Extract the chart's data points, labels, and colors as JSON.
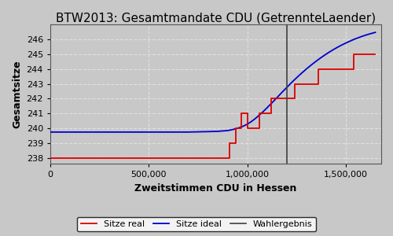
{
  "title": "BTW2013: Gesamtmandate CDU (GetrennteLaender)",
  "xlabel": "Zweitstimmen CDU in Hessen",
  "ylabel": "Gesamtsitze",
  "background_color": "#c8c8c8",
  "plot_background_color": "#c8c8c8",
  "wahlergebnis": 1200000,
  "xlim": [
    0,
    1680000
  ],
  "ylim": [
    237.6,
    247.0
  ],
  "yticks": [
    238,
    239,
    240,
    241,
    242,
    243,
    244,
    245,
    246
  ],
  "xticks": [
    0,
    500000,
    1000000,
    1500000
  ],
  "xticklabels": [
    "0",
    "500,000",
    "1,000,000",
    "1,500,000"
  ],
  "ideal_x": [
    0,
    50000,
    100000,
    200000,
    300000,
    400000,
    500000,
    600000,
    700000,
    800000,
    850000,
    900000,
    920000,
    940000,
    960000,
    980000,
    1000000,
    1020000,
    1040000,
    1060000,
    1080000,
    1100000,
    1120000,
    1140000,
    1160000,
    1180000,
    1200000,
    1220000,
    1240000,
    1260000,
    1280000,
    1300000,
    1320000,
    1340000,
    1360000,
    1380000,
    1400000,
    1420000,
    1440000,
    1460000,
    1480000,
    1500000,
    1520000,
    1540000,
    1560000,
    1580000,
    1600000,
    1620000,
    1650000
  ],
  "ideal_y": [
    239.75,
    239.75,
    239.75,
    239.75,
    239.75,
    239.75,
    239.75,
    239.75,
    239.75,
    239.78,
    239.8,
    239.85,
    239.9,
    239.97,
    240.05,
    240.15,
    240.28,
    240.45,
    240.65,
    240.88,
    241.12,
    241.38,
    241.65,
    241.92,
    242.2,
    242.48,
    242.75,
    243.02,
    243.28,
    243.53,
    243.77,
    244.0,
    244.22,
    244.43,
    244.63,
    244.82,
    245.0,
    245.17,
    245.33,
    245.48,
    245.62,
    245.75,
    245.87,
    245.99,
    246.09,
    246.19,
    246.28,
    246.36,
    246.47
  ],
  "real_x": [
    0,
    880000,
    880000,
    910000,
    910000,
    940000,
    940000,
    970000,
    970000,
    1000000,
    1000000,
    1060000,
    1060000,
    1120000,
    1120000,
    1180000,
    1180000,
    1240000,
    1240000,
    1300000,
    1300000,
    1360000,
    1360000,
    1420000,
    1420000,
    1480000,
    1480000,
    1540000,
    1540000,
    1600000,
    1600000,
    1650000
  ],
  "real_y": [
    238,
    238,
    238,
    238,
    239,
    239,
    240,
    240,
    241,
    241,
    240,
    240,
    241,
    241,
    242,
    242,
    242,
    242,
    243,
    243,
    243,
    243,
    244,
    244,
    244,
    244,
    244,
    244,
    245,
    245,
    245,
    245
  ],
  "line_real_color": "#dd0000",
  "line_ideal_color": "#0000cc",
  "wahlergebnis_color": "#404040",
  "grid_color": "#e0e0e0",
  "grid_linestyle": "--",
  "legend_labels": [
    "Sitze real",
    "Sitze ideal",
    "Wahlergebnis"
  ],
  "title_fontsize": 11,
  "axis_label_fontsize": 9,
  "tick_fontsize": 8,
  "legend_fontsize": 8
}
